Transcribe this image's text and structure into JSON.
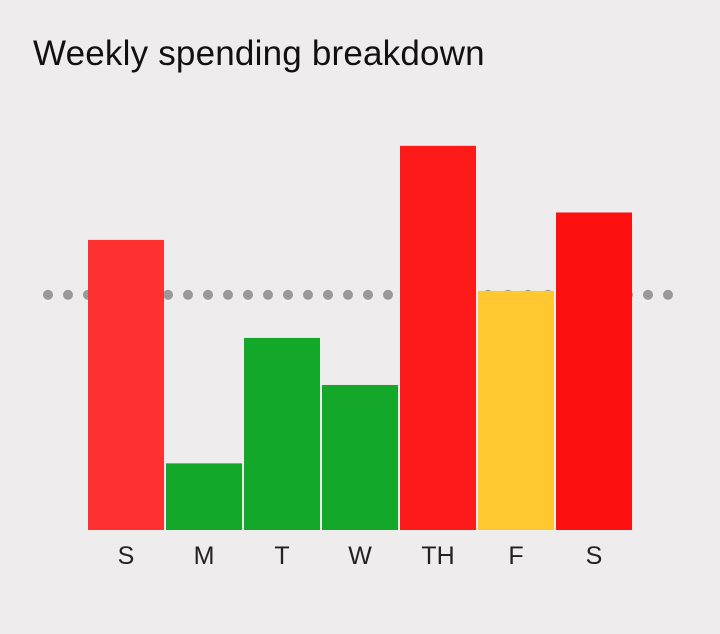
{
  "title": "Weekly spending breakdown",
  "chart_data": {
    "type": "bar",
    "title": "Weekly spending breakdown",
    "categories": [
      "S",
      "M",
      "T",
      "W",
      "TH",
      "F",
      "S"
    ],
    "values": [
      74,
      17,
      49,
      37,
      98,
      61,
      81
    ],
    "colors": [
      "#ff3030",
      "#13a829",
      "#13a829",
      "#13a829",
      "#ff1a1a",
      "#ffc830",
      "#ff1010"
    ],
    "reference_line": {
      "value": 60,
      "style": "dotted",
      "color": "#999999"
    },
    "ylim": [
      0,
      100
    ],
    "xlabel": "",
    "ylabel": "",
    "grid": false,
    "legend": "none"
  }
}
